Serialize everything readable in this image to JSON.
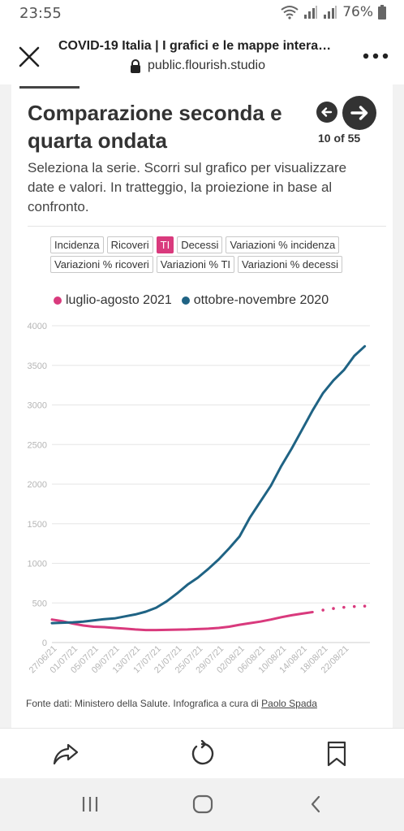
{
  "status_bar": {
    "time": "23:55",
    "battery": "76%"
  },
  "browser": {
    "page_title": "COVID-19 Italia | I grafici e le mappe intera…",
    "url": "public.flourish.studio"
  },
  "slide": {
    "title": "Comparazione seconda e quarta ondata",
    "subtitle": "Seleziona la serie. Scorri sul grafico per visualizzare date e valori. In tratteggio, la proiezione in base al confronto.",
    "counter": "10 of 55"
  },
  "filters": [
    {
      "label": "Incidenza",
      "active": false
    },
    {
      "label": "Ricoveri",
      "active": false
    },
    {
      "label": "TI",
      "active": true
    },
    {
      "label": "Decessi",
      "active": false
    },
    {
      "label": "Variazioni % incidenza",
      "active": false
    },
    {
      "label": "Variazioni % ricoveri",
      "active": false
    },
    {
      "label": "Variazioni % TI",
      "active": false
    },
    {
      "label": "Variazioni % decessi",
      "active": false
    }
  ],
  "colors": {
    "series_2021": "#d93a7d",
    "series_2020": "#1f6384",
    "active_filter": "#d93a7d",
    "grid": "#e6e6e6",
    "tick_text": "#b5b5b5"
  },
  "chart_data": {
    "type": "line",
    "xlabel": "",
    "ylabel": "",
    "ylim": [
      0,
      4000
    ],
    "yticks": [
      0,
      500,
      1000,
      1500,
      2000,
      2500,
      3000,
      3500,
      4000
    ],
    "x_range": [
      "2021-06-26",
      "2021-08-26"
    ],
    "x_ticks": [
      "27/06/21",
      "01/07/21",
      "05/07/21",
      "09/07/21",
      "13/07/21",
      "17/07/21",
      "21/07/21",
      "25/07/21",
      "29/07/21",
      "02/08/21",
      "06/08/21",
      "10/08/21",
      "14/08/21",
      "18/08/21",
      "22/08/21"
    ],
    "grid": true,
    "legend_position": "top",
    "series": [
      {
        "name": "luglio-agosto 2021",
        "color": "#d93a7d",
        "points": [
          [
            "2021-06-26",
            290
          ],
          [
            "2021-06-28",
            270
          ],
          [
            "2021-06-30",
            240
          ],
          [
            "2021-07-02",
            215
          ],
          [
            "2021-07-04",
            200
          ],
          [
            "2021-07-06",
            195
          ],
          [
            "2021-07-08",
            185
          ],
          [
            "2021-07-10",
            175
          ],
          [
            "2021-07-12",
            165
          ],
          [
            "2021-07-14",
            158
          ],
          [
            "2021-07-16",
            158
          ],
          [
            "2021-07-18",
            160
          ],
          [
            "2021-07-20",
            163
          ],
          [
            "2021-07-22",
            165
          ],
          [
            "2021-07-24",
            170
          ],
          [
            "2021-07-26",
            175
          ],
          [
            "2021-07-28",
            185
          ],
          [
            "2021-07-30",
            200
          ],
          [
            "2021-08-01",
            225
          ],
          [
            "2021-08-03",
            245
          ],
          [
            "2021-08-05",
            265
          ],
          [
            "2021-08-07",
            290
          ],
          [
            "2021-08-09",
            320
          ],
          [
            "2021-08-11",
            345
          ],
          [
            "2021-08-13",
            365
          ],
          [
            "2021-08-15",
            385
          ]
        ],
        "projection": [
          [
            "2021-08-17",
            410
          ],
          [
            "2021-08-19",
            430
          ],
          [
            "2021-08-21",
            445
          ],
          [
            "2021-08-23",
            455
          ],
          [
            "2021-08-25",
            460
          ]
        ]
      },
      {
        "name": "ottobre-novembre 2020",
        "color": "#1f6384",
        "points": [
          [
            "2021-06-26",
            245
          ],
          [
            "2021-06-28",
            250
          ],
          [
            "2021-06-30",
            255
          ],
          [
            "2021-07-02",
            265
          ],
          [
            "2021-07-04",
            280
          ],
          [
            "2021-07-06",
            295
          ],
          [
            "2021-07-08",
            305
          ],
          [
            "2021-07-10",
            330
          ],
          [
            "2021-07-12",
            355
          ],
          [
            "2021-07-14",
            390
          ],
          [
            "2021-07-16",
            440
          ],
          [
            "2021-07-18",
            520
          ],
          [
            "2021-07-20",
            620
          ],
          [
            "2021-07-22",
            730
          ],
          [
            "2021-07-24",
            820
          ],
          [
            "2021-07-26",
            930
          ],
          [
            "2021-07-28",
            1050
          ],
          [
            "2021-07-30",
            1190
          ],
          [
            "2021-08-01",
            1340
          ],
          [
            "2021-08-03",
            1580
          ],
          [
            "2021-08-05",
            1780
          ],
          [
            "2021-08-07",
            1980
          ],
          [
            "2021-08-09",
            2230
          ],
          [
            "2021-08-11",
            2450
          ],
          [
            "2021-08-13",
            2690
          ],
          [
            "2021-08-15",
            2930
          ],
          [
            "2021-08-17",
            3150
          ],
          [
            "2021-08-19",
            3310
          ],
          [
            "2021-08-21",
            3440
          ],
          [
            "2021-08-23",
            3620
          ],
          [
            "2021-08-25",
            3740
          ]
        ]
      }
    ]
  },
  "footer": {
    "source_text": "Fonte dati: Ministero della Salute. Infografica a cura di ",
    "author": "Paolo Spada"
  },
  "icons": {
    "close": "close-icon",
    "more": "more-icon",
    "lock": "lock-icon",
    "share": "share-icon",
    "refresh": "refresh-icon",
    "bookmark": "bookmark-icon",
    "recents": "recents-icon",
    "home": "home-icon",
    "back": "back-icon"
  }
}
